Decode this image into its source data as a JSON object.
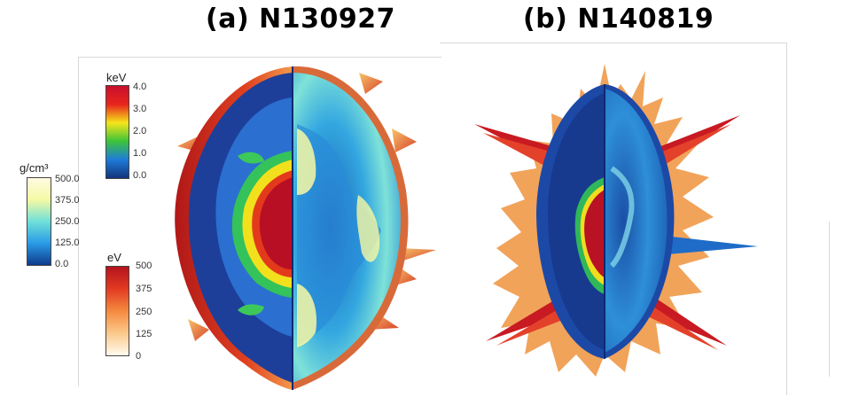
{
  "titles": {
    "a": "(a) N130927",
    "b": "(b) N140819"
  },
  "colorbars": {
    "temperature": {
      "unit": "keV",
      "ticks": [
        "4.0",
        "3.0",
        "2.0",
        "1.0",
        "0.0"
      ],
      "colors": [
        "#c8102e",
        "#e8241c",
        "#f5e51a",
        "#3cc43a",
        "#1e7bd9",
        "#12347a"
      ]
    },
    "density": {
      "unit": "g/cm³",
      "ticks": [
        "500.0",
        "375.0",
        "250.0",
        "125.0",
        "0.0"
      ],
      "colors": [
        "#fffbe0",
        "#f4f9a4",
        "#6fe0d8",
        "#2a9be6",
        "#0e3a8c"
      ]
    },
    "radiation": {
      "unit": "eV",
      "ticks": [
        "500",
        "375",
        "250",
        "125",
        "0"
      ],
      "colors": [
        "#b5131d",
        "#e23a22",
        "#f58a40",
        "#fbc98b",
        "#fffbef"
      ]
    }
  }
}
